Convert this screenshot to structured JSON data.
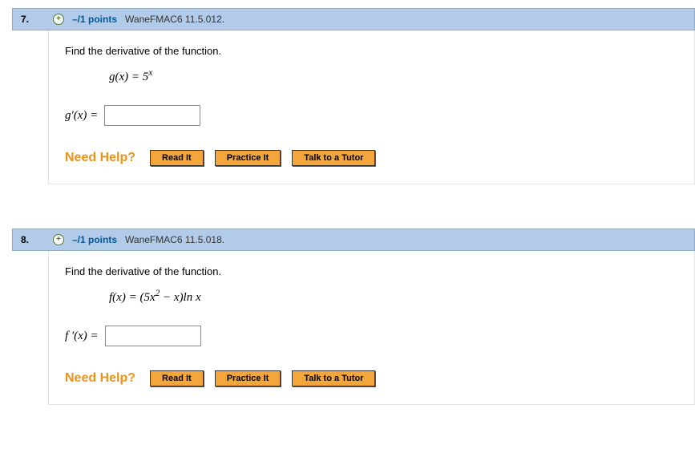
{
  "questions": [
    {
      "number": "7.",
      "points": "–/1 points",
      "reference": "WaneFMAC6 11.5.012.",
      "prompt": "Find the derivative of the function.",
      "formula_html": "<i>g</i>(<i>x</i>) = 5<sup><i>x</i></sup>",
      "answer_label_html": "<i>g</i>'(<i>x</i>) ="
    },
    {
      "number": "8.",
      "points": "–/1 points",
      "reference": "WaneFMAC6 11.5.018.",
      "prompt": "Find the derivative of the function.",
      "formula_html": "<i>f</i>(<i>x</i>) = (5<i>x</i><sup>2</sup> − <i>x</i>)ln <i>x</i>",
      "answer_label_html": "<i>f</i> '(<i>x</i>) ="
    }
  ],
  "help": {
    "label": "Need Help?",
    "read": "Read It",
    "practice": "Practice It",
    "tutor": "Talk to a Tutor"
  },
  "expand_glyph": "+"
}
